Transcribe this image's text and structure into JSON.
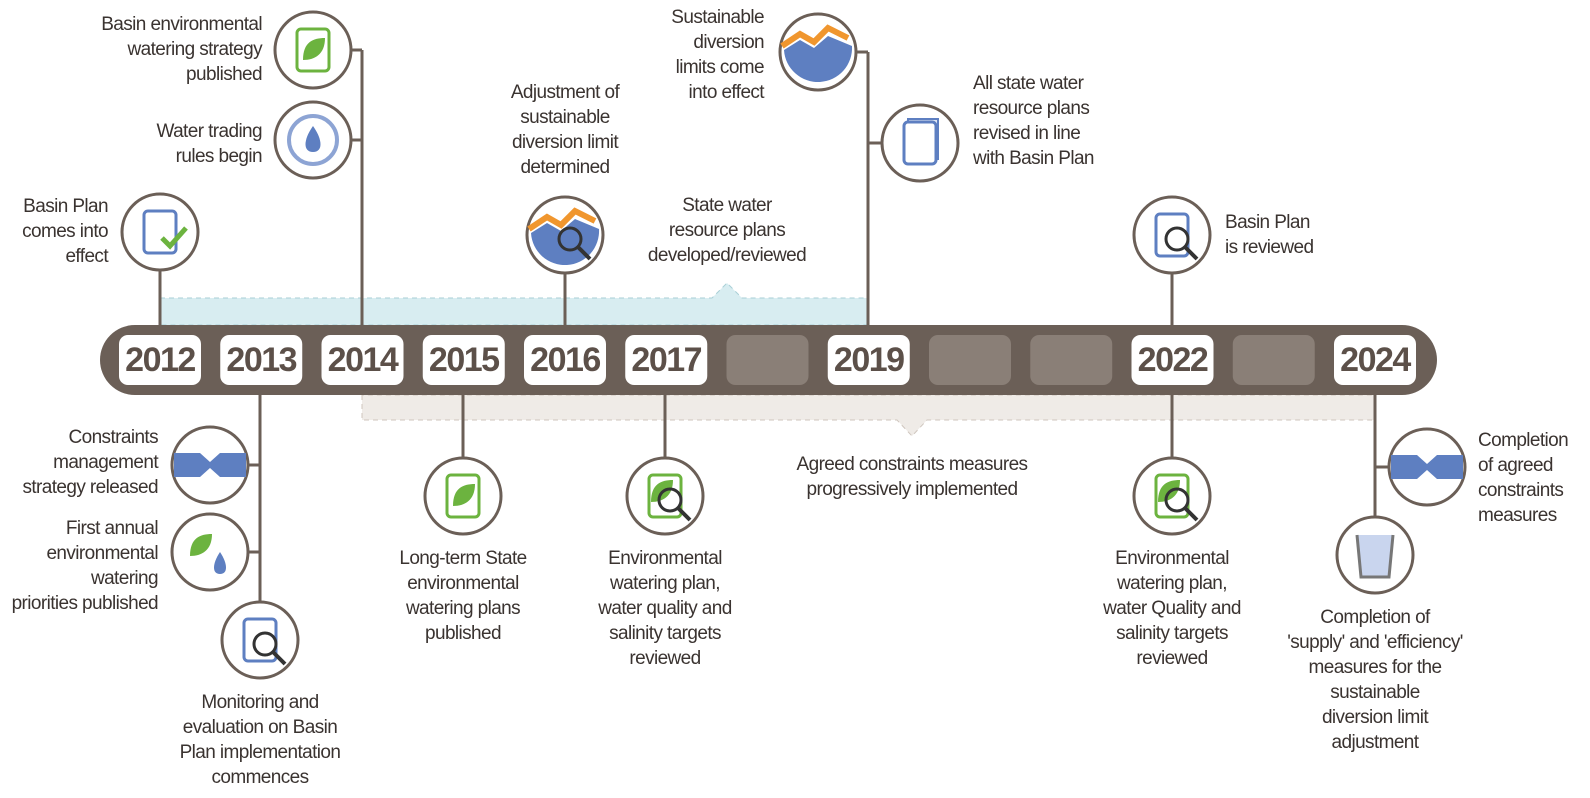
{
  "years": [
    "2012",
    "2013",
    "2014",
    "2015",
    "2016",
    "2017",
    "2019",
    "2022",
    "2024"
  ],
  "events": [
    {
      "lines": [
        "Basin Plan",
        "comes into",
        "effect"
      ]
    },
    {
      "lines": [
        "Water trading",
        "rules begin"
      ]
    },
    {
      "lines": [
        "Basin environmental",
        "watering strategy",
        "published"
      ]
    },
    {
      "lines": [
        "Adjustment of",
        "sustainable",
        "diversion limit",
        "determined"
      ]
    },
    {
      "lines": [
        "State water",
        "resource plans",
        "developed/reviewed"
      ]
    },
    {
      "lines": [
        "Sustainable",
        "diversion",
        "limits come",
        "into effect"
      ]
    },
    {
      "lines": [
        "All state water",
        "resource plans",
        "revised in line",
        "with Basin Plan"
      ]
    },
    {
      "lines": [
        "Basin Plan",
        "is reviewed"
      ]
    },
    {
      "lines": [
        "Constraints",
        "management",
        "strategy released"
      ]
    },
    {
      "lines": [
        "First annual",
        "environmental",
        "watering",
        "priorities published"
      ]
    },
    {
      "lines": [
        "Monitoring and",
        "evaluation on Basin",
        "Plan implementation",
        "commences"
      ]
    },
    {
      "lines": [
        "Long-term State",
        "environmental",
        "watering plans",
        "published"
      ]
    },
    {
      "lines": [
        "Environmental",
        "watering plan,",
        "water quality and",
        "salinity targets",
        "reviewed"
      ]
    },
    {
      "lines": [
        "Agreed constraints measures",
        "progressively implemented"
      ]
    },
    {
      "lines": [
        "Environmental",
        "watering plan,",
        "water Quality and",
        "salinity targets",
        "reviewed"
      ]
    },
    {
      "lines": [
        "Completion",
        "of agreed",
        "constraints",
        "measures"
      ]
    },
    {
      "lines": [
        "Completion of",
        "'supply' and 'efficiency'",
        "measures for the",
        "sustainable",
        "diversion limit",
        "adjustment"
      ]
    }
  ]
}
